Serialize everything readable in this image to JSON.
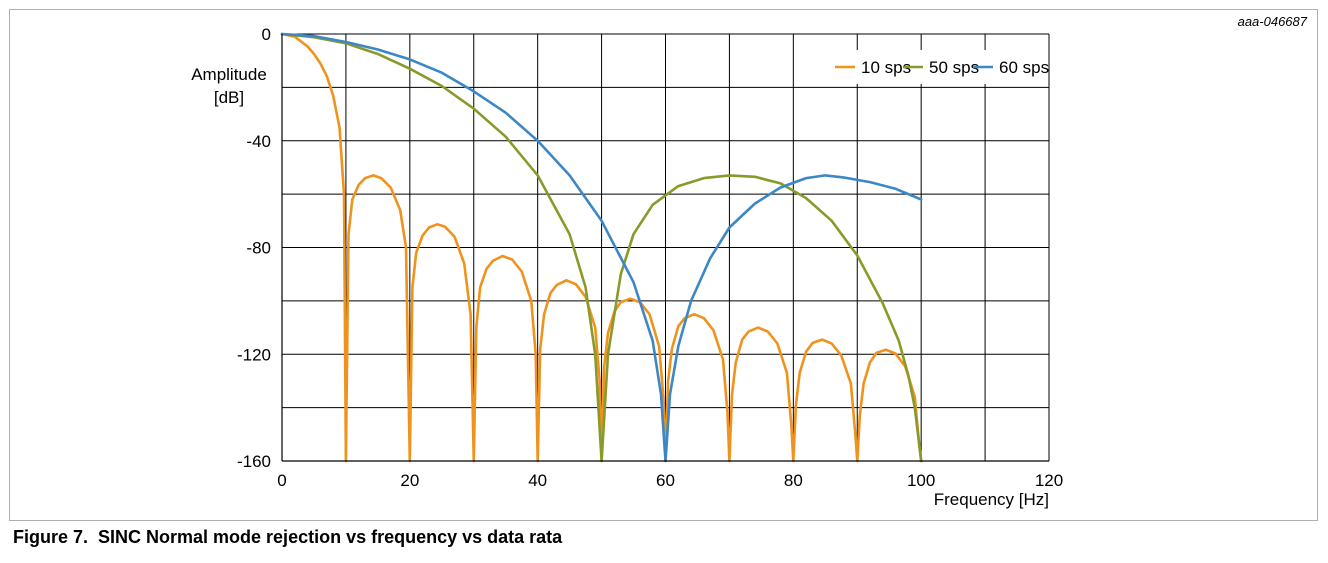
{
  "figure": {
    "id": "aaa-046687",
    "caption": "Figure 7.  SINC Normal mode rejection vs frequency vs data rata"
  },
  "chart_data": {
    "type": "line",
    "title": "",
    "xlabel": "Frequency [Hz]",
    "ylabel_lines": [
      "Amplitude",
      "[dB]"
    ],
    "xlim": [
      0,
      120
    ],
    "ylim": [
      -160,
      0
    ],
    "x_ticks": [
      0,
      20,
      40,
      60,
      80,
      100,
      120
    ],
    "y_ticks": [
      0,
      -40,
      -80,
      -120,
      -160
    ],
    "x_grid": [
      0,
      10,
      20,
      30,
      40,
      50,
      60,
      70,
      80,
      90,
      100,
      110,
      120
    ],
    "y_grid": [
      0,
      -20,
      -40,
      -60,
      -80,
      -100,
      -120,
      -140,
      -160
    ],
    "grid": true,
    "legend_position": "top-right",
    "series": [
      {
        "name": "10 sps",
        "color": "#f0921e",
        "notch_spacing_hz": 10,
        "points": [
          [
            0,
            0
          ],
          [
            2,
            -1
          ],
          [
            4,
            -4.7
          ],
          [
            5,
            -7.5
          ],
          [
            6,
            -11
          ],
          [
            7,
            -15.7
          ],
          [
            8,
            -23
          ],
          [
            9,
            -35
          ],
          [
            9.7,
            -60
          ],
          [
            10,
            -160
          ],
          [
            10.4,
            -75
          ],
          [
            11,
            -62
          ],
          [
            12,
            -56.5
          ],
          [
            13,
            -54
          ],
          [
            14.3,
            -53
          ],
          [
            15.5,
            -54
          ],
          [
            17,
            -57.5
          ],
          [
            18.5,
            -66
          ],
          [
            19.4,
            -80
          ],
          [
            20,
            -160
          ],
          [
            20.4,
            -95
          ],
          [
            21,
            -82
          ],
          [
            22,
            -75.5
          ],
          [
            23,
            -72.5
          ],
          [
            24.3,
            -71.3
          ],
          [
            25.5,
            -72.2
          ],
          [
            27,
            -76
          ],
          [
            28.5,
            -86
          ],
          [
            29.5,
            -105
          ],
          [
            30,
            -160
          ],
          [
            30.4,
            -110
          ],
          [
            31,
            -95
          ],
          [
            32,
            -88
          ],
          [
            33,
            -85
          ],
          [
            34.5,
            -83.2
          ],
          [
            36,
            -84.5
          ],
          [
            37.5,
            -89
          ],
          [
            39,
            -100
          ],
          [
            39.7,
            -120
          ],
          [
            40,
            -160
          ],
          [
            40.4,
            -118
          ],
          [
            41,
            -105
          ],
          [
            42,
            -97
          ],
          [
            43,
            -94
          ],
          [
            44.5,
            -92.3
          ],
          [
            46,
            -93.8
          ],
          [
            47.5,
            -98.5
          ],
          [
            49,
            -110
          ],
          [
            49.7,
            -130
          ],
          [
            50,
            -160
          ],
          [
            50.4,
            -125
          ],
          [
            51,
            -112
          ],
          [
            52,
            -104
          ],
          [
            53,
            -100.5
          ],
          [
            54.5,
            -99.2
          ],
          [
            56,
            -100.5
          ],
          [
            57.5,
            -105
          ],
          [
            59,
            -117
          ],
          [
            59.7,
            -137
          ],
          [
            60,
            -160
          ],
          [
            60.4,
            -130
          ],
          [
            61,
            -118
          ],
          [
            62,
            -109.5
          ],
          [
            63,
            -106.5
          ],
          [
            64.5,
            -105
          ],
          [
            66,
            -106.5
          ],
          [
            67.5,
            -111
          ],
          [
            69,
            -122
          ],
          [
            69.7,
            -142
          ],
          [
            70,
            -160
          ],
          [
            70.4,
            -135
          ],
          [
            71,
            -123
          ],
          [
            72,
            -114.5
          ],
          [
            73,
            -111.5
          ],
          [
            74.5,
            -110
          ],
          [
            76,
            -111.5
          ],
          [
            77.5,
            -116
          ],
          [
            79,
            -127
          ],
          [
            79.7,
            -147
          ],
          [
            80,
            -160
          ],
          [
            80.4,
            -139
          ],
          [
            81,
            -127
          ],
          [
            82,
            -119
          ],
          [
            83,
            -115.8
          ],
          [
            84.5,
            -114.5
          ],
          [
            86,
            -116
          ],
          [
            87.5,
            -120.5
          ],
          [
            89,
            -131
          ],
          [
            89.7,
            -150
          ],
          [
            90,
            -160
          ],
          [
            90.4,
            -143
          ],
          [
            91,
            -131
          ],
          [
            92,
            -123
          ],
          [
            93,
            -119.5
          ],
          [
            94.5,
            -118.3
          ],
          [
            96,
            -119.8
          ],
          [
            97.5,
            -124.5
          ],
          [
            99,
            -136
          ],
          [
            99.7,
            -154
          ],
          [
            100,
            -160
          ]
        ]
      },
      {
        "name": "50 sps",
        "color": "#8a9a2a",
        "notch_spacing_hz": 50,
        "points": [
          [
            0,
            0
          ],
          [
            5,
            -1.2
          ],
          [
            10,
            -3.5
          ],
          [
            15,
            -7.5
          ],
          [
            20,
            -13
          ],
          [
            25,
            -19.5
          ],
          [
            30,
            -28
          ],
          [
            35,
            -38.5
          ],
          [
            40,
            -53
          ],
          [
            45,
            -75
          ],
          [
            47.5,
            -95
          ],
          [
            49,
            -120
          ],
          [
            50,
            -160
          ],
          [
            51,
            -120
          ],
          [
            53,
            -90
          ],
          [
            55,
            -75
          ],
          [
            58,
            -64
          ],
          [
            62,
            -57
          ],
          [
            66,
            -54
          ],
          [
            70,
            -53
          ],
          [
            74,
            -53.5
          ],
          [
            78,
            -56
          ],
          [
            82,
            -61.5
          ],
          [
            86,
            -70
          ],
          [
            90,
            -83
          ],
          [
            94,
            -101
          ],
          [
            96.5,
            -115
          ],
          [
            98,
            -128
          ],
          [
            99,
            -140
          ],
          [
            100,
            -160
          ]
        ]
      },
      {
        "name": "60 sps",
        "color": "#3c87c6",
        "notch_spacing_hz": 60,
        "points": [
          [
            0,
            0
          ],
          [
            5,
            -0.8
          ],
          [
            10,
            -3
          ],
          [
            15,
            -5.8
          ],
          [
            20,
            -9.5
          ],
          [
            25,
            -14.5
          ],
          [
            30,
            -21.5
          ],
          [
            35,
            -29.5
          ],
          [
            40,
            -40
          ],
          [
            45,
            -53
          ],
          [
            50,
            -70
          ],
          [
            55,
            -93
          ],
          [
            58,
            -115
          ],
          [
            59.3,
            -135
          ],
          [
            60,
            -160
          ],
          [
            60.7,
            -135
          ],
          [
            62,
            -117
          ],
          [
            64,
            -100
          ],
          [
            67,
            -84
          ],
          [
            70,
            -72.5
          ],
          [
            74,
            -63.5
          ],
          [
            78,
            -57.5
          ],
          [
            82,
            -54
          ],
          [
            85,
            -53
          ],
          [
            88,
            -53.8
          ],
          [
            92,
            -55.5
          ],
          [
            96,
            -58
          ],
          [
            100,
            -62
          ]
        ]
      }
    ]
  }
}
